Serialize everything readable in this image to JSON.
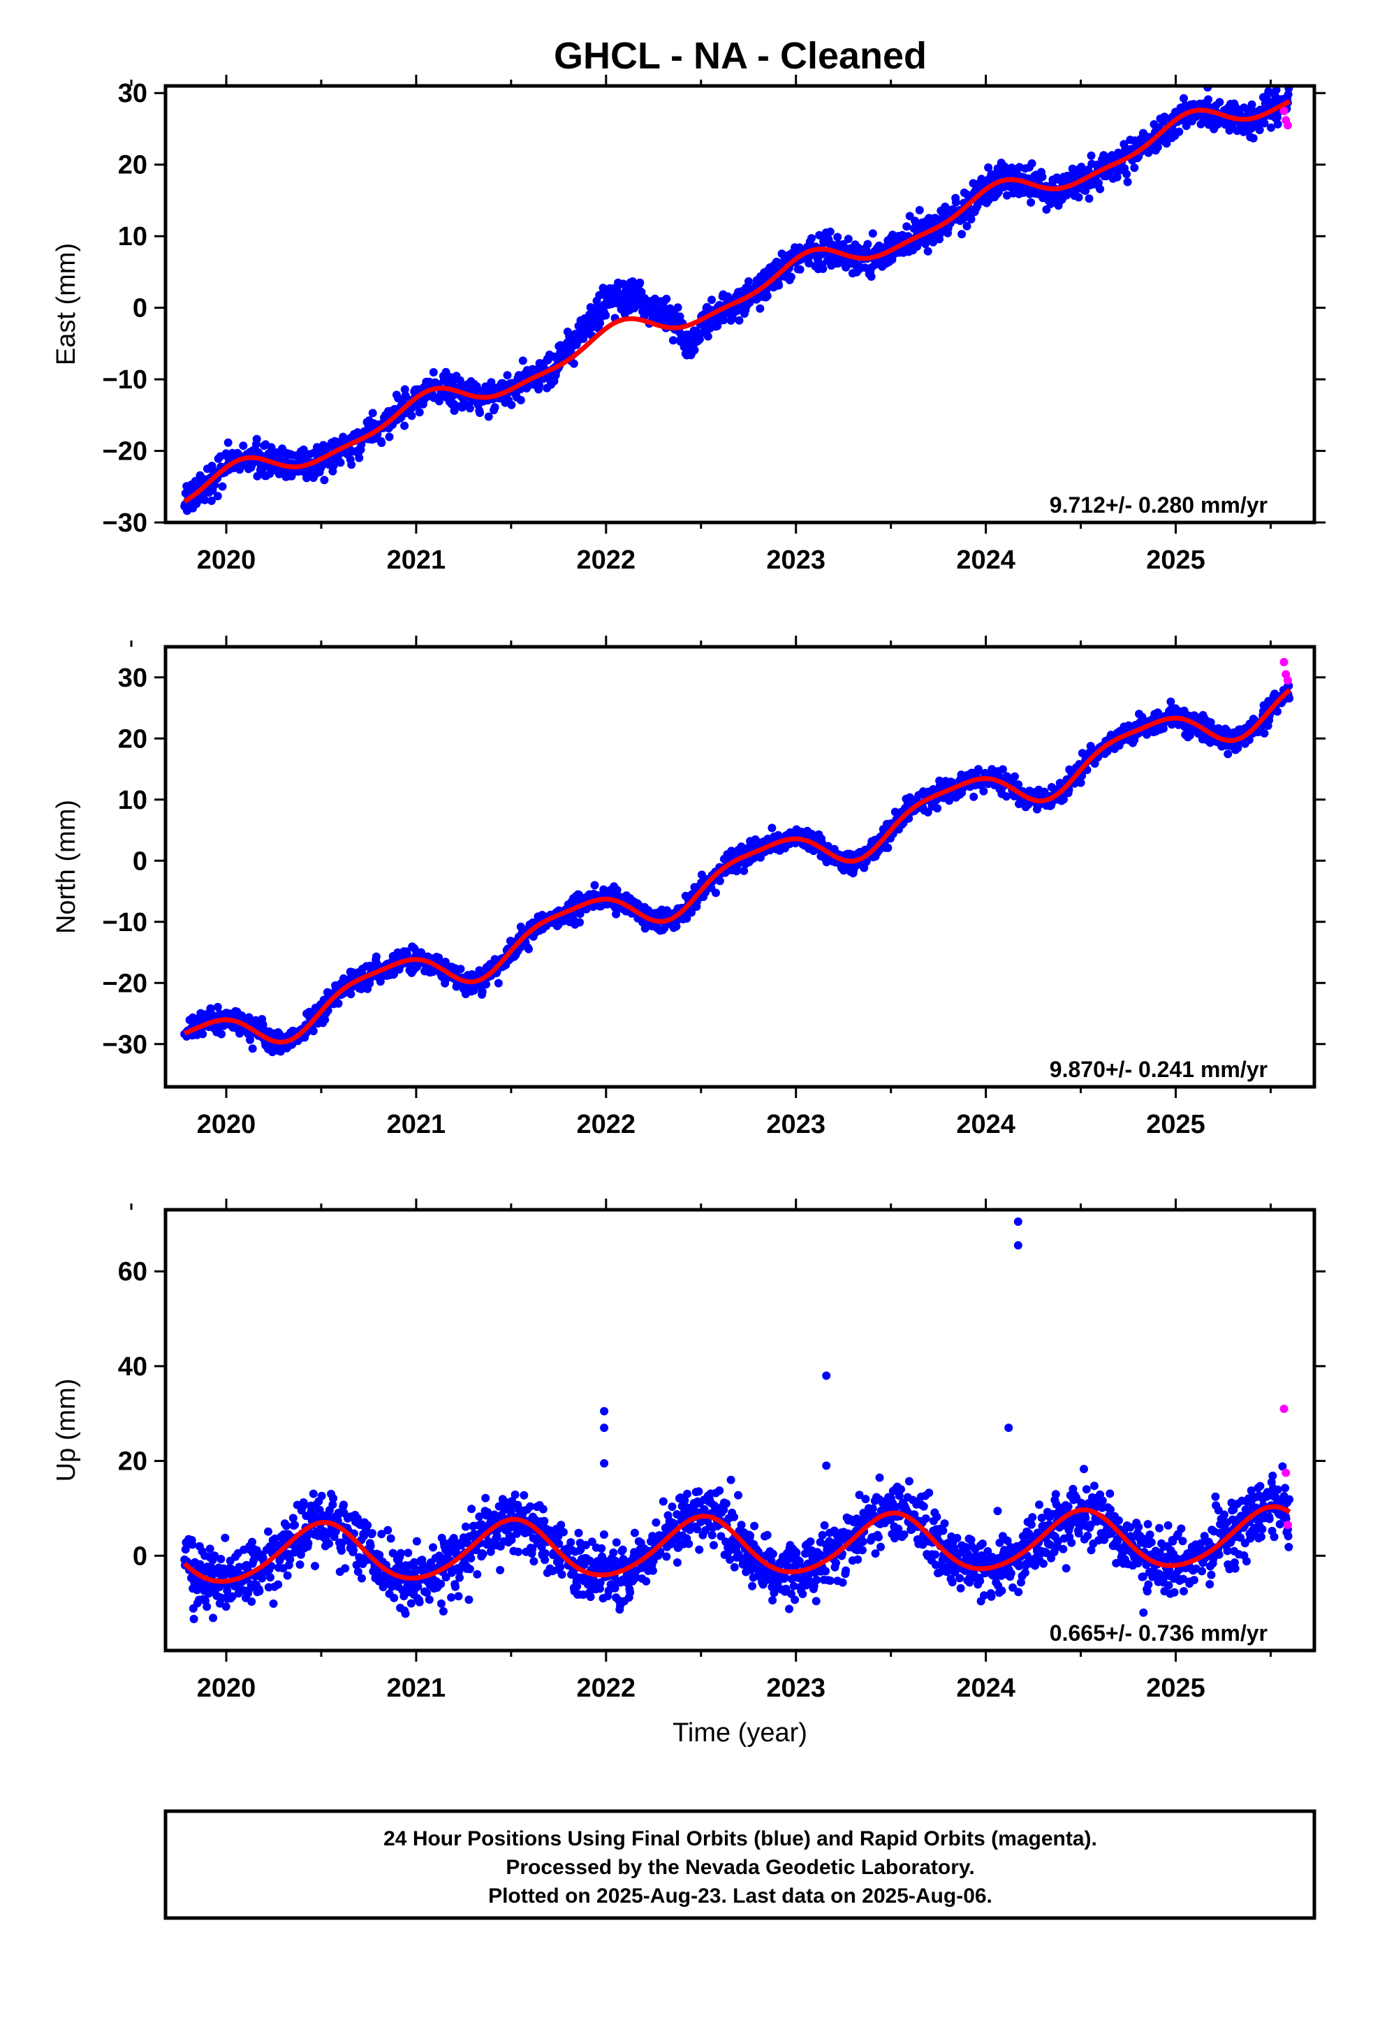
{
  "title": "GHCL  - NA - Cleaned",
  "footer": {
    "line1": "24 Hour Positions Using Final Orbits (blue) and Rapid Orbits (magenta).",
    "line2": "Processed by the Nevada Geodetic Laboratory.",
    "line3": "Plotted on 2025-Aug-23. Last data on 2025-Aug-06."
  },
  "colors": {
    "final": "#0000ff",
    "rapid": "#ff00ff",
    "model": "#ff0000"
  },
  "chart_data": [
    {
      "type": "scatter",
      "panel": "east",
      "ylabel": "East (mm)",
      "xlabel": "",
      "xlim": [
        2019.68,
        2025.73
      ],
      "ylim": [
        -30,
        31
      ],
      "xticks": [
        2020,
        2021,
        2022,
        2023,
        2024,
        2025
      ],
      "yticks": [
        -30,
        -20,
        -10,
        0,
        10,
        20,
        30
      ],
      "rate": "9.712+/- 0.280 mm/yr",
      "model": {
        "slope": 9.712,
        "offset": -26.5,
        "start": 2019.78,
        "end": 2025.6,
        "annual_amp": 1.9,
        "annual_phase": 1.3,
        "semi_amp": 0.6,
        "semi_phase": 0.4,
        "noise": 1.1
      },
      "anomalies": [
        {
          "t0": 2021.72,
          "t1": 2022.38,
          "dy": 3.5
        },
        {
          "t0": 2022.38,
          "t1": 2022.52,
          "dy": -3.0
        }
      ],
      "series": [
        {
          "name": "Final Orbits",
          "color": "#0000ff"
        },
        {
          "name": "Rapid Orbits",
          "color": "#ff00ff",
          "points": [
            [
              2025.57,
              27.5
            ],
            [
              2025.58,
              26.2
            ],
            [
              2025.59,
              25.5
            ]
          ]
        }
      ]
    },
    {
      "type": "scatter",
      "panel": "north",
      "ylabel": "North (mm)",
      "xlabel": "",
      "xlim": [
        2019.68,
        2025.73
      ],
      "ylim": [
        -37,
        35
      ],
      "xticks": [
        2020,
        2021,
        2022,
        2023,
        2024,
        2025
      ],
      "yticks": [
        -30,
        -20,
        -10,
        0,
        10,
        20,
        30
      ],
      "rate": "9.870+/- 0.241 mm/yr",
      "model": {
        "slope": 9.87,
        "offset": -30.6,
        "start": 2019.78,
        "end": 2025.6,
        "annual_amp": 3.4,
        "annual_phase": 2.6,
        "semi_amp": 0.9,
        "semi_phase": 0.8,
        "noise": 0.9
      },
      "anomalies": [],
      "series": [
        {
          "name": "Final Orbits",
          "color": "#0000ff"
        },
        {
          "name": "Rapid Orbits",
          "color": "#ff00ff",
          "points": [
            [
              2025.57,
              32.5
            ],
            [
              2025.58,
              30.5
            ],
            [
              2025.59,
              29.5
            ]
          ]
        }
      ]
    },
    {
      "type": "scatter",
      "panel": "up",
      "ylabel": "Up (mm)",
      "xlabel": "Time (year)",
      "xlim": [
        2019.68,
        2025.73
      ],
      "ylim": [
        -20,
        73
      ],
      "xticks": [
        2020,
        2021,
        2022,
        2023,
        2024,
        2025
      ],
      "yticks": [
        0,
        20,
        40,
        60
      ],
      "rate": "0.665+/- 0.736 mm/yr",
      "model": {
        "slope": 0.665,
        "offset": 0.0,
        "start": 2019.78,
        "end": 2025.6,
        "annual_amp": 6.0,
        "annual_phase": 4.7,
        "semi_amp": 0.6,
        "semi_phase": 1.0,
        "noise": 3.2
      },
      "anomalies": [],
      "outliers": [
        [
          2021.99,
          30.5
        ],
        [
          2021.99,
          27.0
        ],
        [
          2021.99,
          19.5
        ],
        [
          2023.16,
          38.0
        ],
        [
          2023.16,
          19.0
        ],
        [
          2024.12,
          27.0
        ],
        [
          2024.17,
          70.5
        ],
        [
          2024.17,
          65.5
        ],
        [
          2024.83,
          -12.0
        ]
      ],
      "series": [
        {
          "name": "Final Orbits",
          "color": "#0000ff"
        },
        {
          "name": "Rapid Orbits",
          "color": "#ff00ff",
          "points": [
            [
              2025.57,
              31.0
            ],
            [
              2025.58,
              17.5
            ],
            [
              2025.59,
              6.5
            ]
          ]
        }
      ]
    }
  ]
}
